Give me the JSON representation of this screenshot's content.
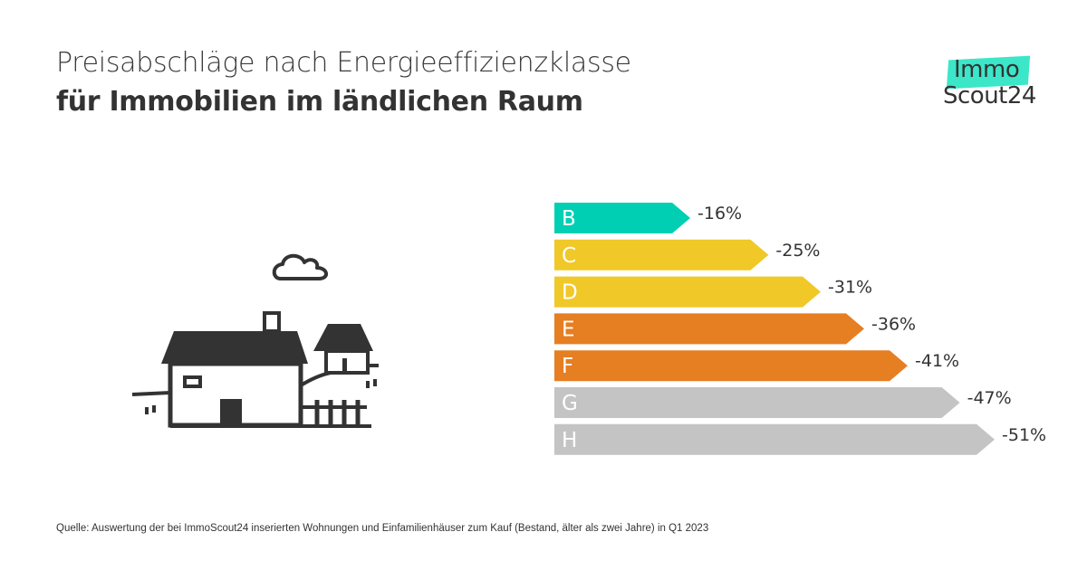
{
  "header": {
    "title_line1": "Preisabschläge nach Energieeffizienzklasse",
    "title_line2": "für Immobilien im ländlichen Raum"
  },
  "logo": {
    "line1": "Immo",
    "line2": "Scout24",
    "accent_color": "#3ce6c8"
  },
  "illustration": {
    "icon": "house-with-cloud-icon"
  },
  "chart_data": {
    "type": "bar",
    "orientation": "horizontal",
    "title": "Preisabschläge nach Energieeffizienzklasse für Immobilien im ländlichen Raum",
    "xlabel": "",
    "ylabel": "",
    "categories": [
      "B",
      "C",
      "D",
      "E",
      "F",
      "G",
      "H"
    ],
    "values": [
      -16,
      -25,
      -31,
      -36,
      -41,
      -47,
      -51
    ],
    "labels": [
      "-16%",
      "-25%",
      "-31%",
      "-36%",
      "-41%",
      "-47%",
      "-51%"
    ],
    "unit": "%",
    "colors": [
      "#00cfb4",
      "#f0c828",
      "#f0c828",
      "#e67e22",
      "#e67e22",
      "#c4c4c4",
      "#c4c4c4"
    ],
    "grid": false,
    "legend": "none"
  },
  "footer": {
    "source": "Quelle: Auswertung der bei ImmoScout24 inserierten Wohnungen und Einfamilienhäuser zum Kauf  (Bestand, älter als zwei Jahre)  in Q1 2023"
  }
}
